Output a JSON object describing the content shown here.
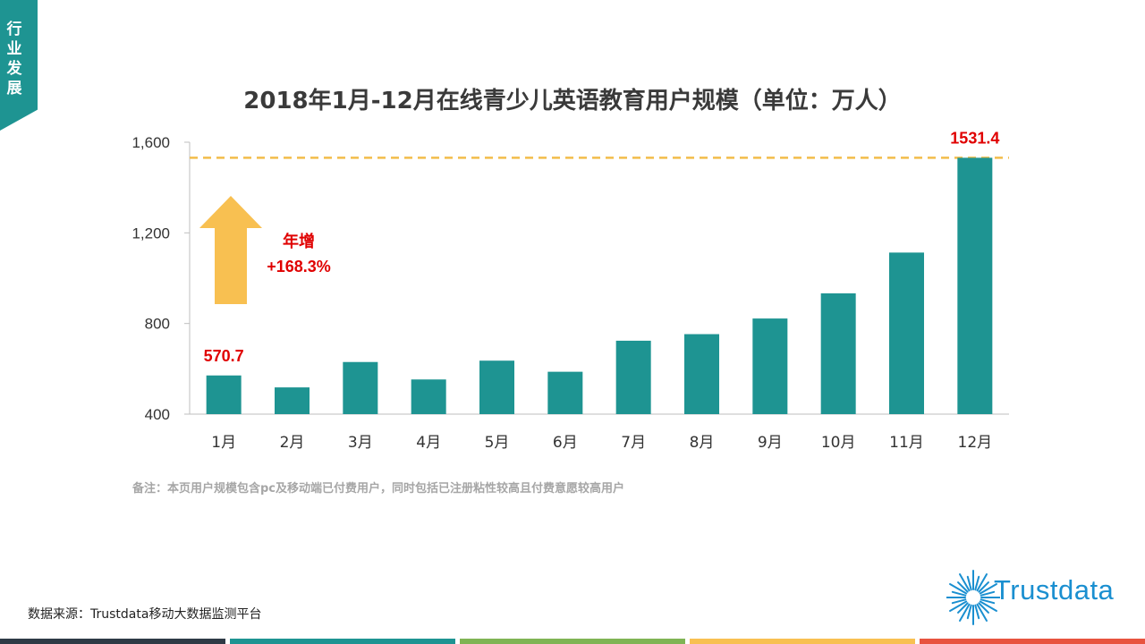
{
  "side_tag": "行业发展",
  "chart_data": {
    "type": "bar",
    "title": "2018年1月-12月在线青少儿英语教育用户规模（单位：万人）",
    "categories": [
      "1月",
      "2月",
      "3月",
      "4月",
      "5月",
      "6月",
      "7月",
      "8月",
      "9月",
      "10月",
      "11月",
      "12月"
    ],
    "values": [
      570.7,
      518,
      630,
      553,
      636,
      587,
      724,
      753,
      822,
      933,
      1113,
      1531.4
    ],
    "ylim": [
      400,
      1600
    ],
    "yticks": [
      400,
      800,
      1200,
      1600
    ],
    "ytick_labels": [
      "400",
      "800",
      "1,200",
      "1,600"
    ],
    "bar_color": "#1e9492",
    "data_labels": [
      {
        "index": 0,
        "text": "570.7"
      },
      {
        "index": 11,
        "text": "1531.4"
      }
    ],
    "reference_line": {
      "value": 1531.4,
      "color": "#f2bd4b",
      "style": "dashed"
    },
    "annotation": {
      "line1": "年增",
      "line2": "+168.3%",
      "color": "#e00000",
      "arrow_color": "#f8c051"
    }
  },
  "note": "备注：本页用户规模包含pc及移动端已付费用户，同时包括已注册粘性较高且付费意愿较高用户",
  "source": "数据来源：Trustdata移动大数据监测平台",
  "logo": {
    "text": "Trustdata",
    "color": "#1a8fd0"
  },
  "footer_colors": [
    "#2e3a45",
    "#1e9492",
    "#7fb454",
    "#f8c051",
    "#e8533f"
  ]
}
